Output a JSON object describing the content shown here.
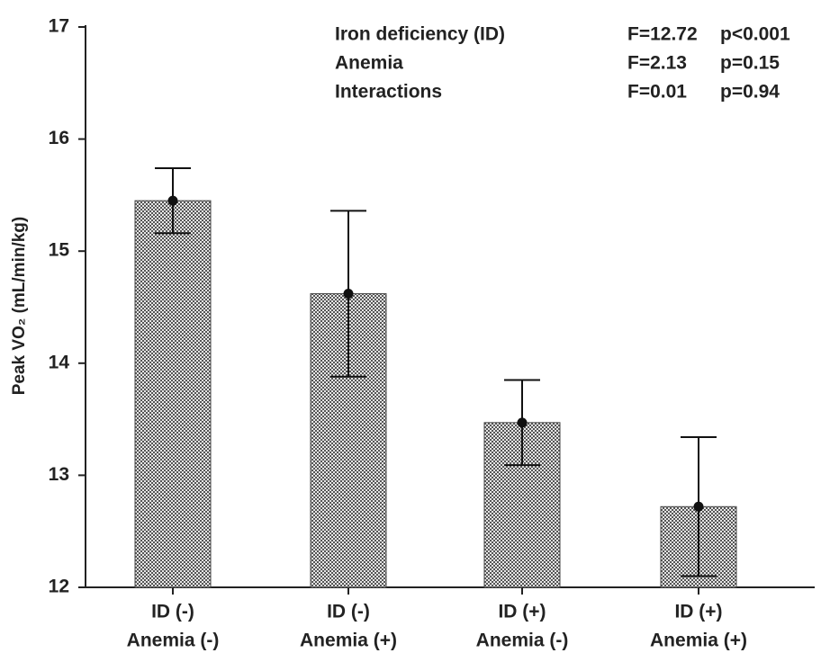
{
  "chart_data": {
    "type": "bar",
    "ylabel": "Peak VO₂ (mL/min/kg)",
    "categories": [
      [
        "ID (-)",
        "Anemia (-)"
      ],
      [
        "ID (-)",
        "Anemia (+)"
      ],
      [
        "ID (+)",
        "Anemia (-)"
      ],
      [
        "ID (+)",
        "Anemia (+)"
      ]
    ],
    "values": [
      15.45,
      14.62,
      13.47,
      12.72
    ],
    "errors": [
      0.29,
      0.74,
      0.38,
      0.62
    ],
    "color": "#7a7a7a",
    "ylim": [
      12,
      17
    ],
    "yticks": [
      12,
      13,
      14,
      15,
      16,
      17
    ],
    "annotations": [
      [
        "Iron deficiency (ID)",
        "F=12.72",
        "p<0.001"
      ],
      [
        "Anemia",
        "F=2.13",
        "p=0.15"
      ],
      [
        "Interactions",
        "F=0.01",
        "p=0.94"
      ]
    ]
  }
}
